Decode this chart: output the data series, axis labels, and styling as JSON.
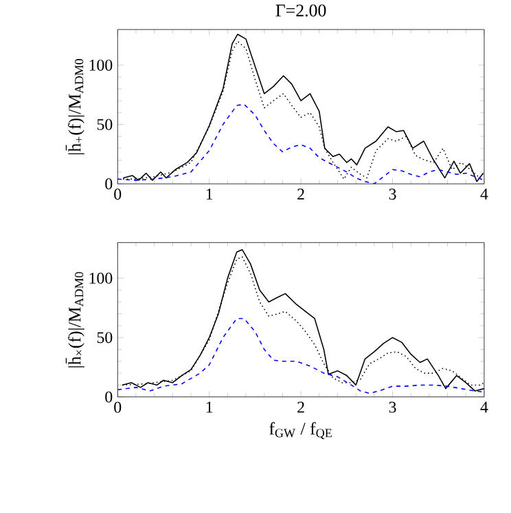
{
  "chart_data": [
    {
      "type": "line",
      "title": "Γ=2.00",
      "ylabel": "|h̄$_{+}$(f)|/M$_{ADM0}$",
      "xlim": [
        0,
        4
      ],
      "ylim": [
        0,
        130
      ],
      "xticks": [
        0,
        1,
        2,
        3,
        4
      ],
      "yticks": [
        0,
        50,
        100
      ],
      "series": [
        {
          "color": "#000000",
          "line_style": "solid",
          "x": [
            0.06,
            0.16,
            0.23,
            0.31,
            0.38,
            0.47,
            0.53,
            0.63,
            0.76,
            0.86,
            1.0,
            1.15,
            1.25,
            1.31,
            1.4,
            1.5,
            1.6,
            1.7,
            1.81,
            1.9,
            2.0,
            2.1,
            2.2,
            2.26,
            2.35,
            2.42,
            2.5,
            2.55,
            2.61,
            2.7,
            2.82,
            2.95,
            3.04,
            3.12,
            3.22,
            3.34,
            3.44,
            3.57,
            3.67,
            3.74,
            3.84,
            3.92,
            3.99
          ],
          "values": [
            5,
            7,
            3,
            9,
            3,
            10,
            5,
            12,
            18,
            26,
            49,
            80,
            118,
            126,
            122,
            99,
            76,
            82,
            91,
            84,
            70,
            76,
            61,
            30,
            23,
            25,
            18,
            21,
            16,
            30,
            36,
            48,
            44,
            45,
            30,
            36,
            21,
            5,
            19,
            9,
            17,
            2,
            9
          ]
        },
        {
          "color": "#000000",
          "line_style": "dotted",
          "x": [
            0.06,
            0.2,
            0.4,
            0.6,
            0.8,
            1.0,
            1.15,
            1.25,
            1.31,
            1.4,
            1.5,
            1.6,
            1.7,
            1.81,
            1.9,
            2.0,
            2.1,
            2.2,
            2.26,
            2.35,
            2.42,
            2.47,
            2.55,
            2.65,
            2.72,
            2.82,
            2.95,
            3.04,
            3.15,
            3.25,
            3.35,
            3.45,
            3.55,
            3.65,
            3.75,
            3.85,
            3.95,
            4.0
          ],
          "values": [
            4,
            4,
            6,
            10,
            18,
            48,
            78,
            112,
            120,
            114,
            88,
            64,
            70,
            76,
            66,
            56,
            60,
            48,
            30,
            18,
            10,
            4,
            14,
            8,
            5,
            28,
            38,
            36,
            40,
            24,
            20,
            18,
            30,
            12,
            18,
            12,
            5,
            10
          ]
        },
        {
          "color": "#0000ff",
          "line_style": "dashed",
          "x": [
            0,
            0.2,
            0.4,
            0.6,
            0.8,
            1.0,
            1.15,
            1.3,
            1.38,
            1.5,
            1.6,
            1.7,
            1.8,
            1.9,
            2.0,
            2.1,
            2.2,
            2.3,
            2.4,
            2.5,
            2.6,
            2.7,
            2.8,
            2.9,
            3.0,
            3.1,
            3.2,
            3.3,
            3.4,
            3.5,
            3.6,
            3.7,
            3.8,
            3.9,
            4.0
          ],
          "values": [
            4,
            3,
            4,
            6,
            10,
            28,
            50,
            66,
            67,
            58,
            45,
            34,
            27,
            31,
            33,
            30,
            22,
            18,
            14,
            10,
            5,
            2,
            0,
            6,
            12,
            11,
            8,
            6,
            10,
            12,
            10,
            8,
            9,
            6,
            3
          ]
        }
      ]
    },
    {
      "type": "line",
      "xlabel": "f$_{GW}$ / f$_{QE}$",
      "ylabel": "|h̄$_{×}$(f)|/M$_{ADM0}$",
      "xlim": [
        0,
        4
      ],
      "ylim": [
        0,
        130
      ],
      "xticks": [
        0,
        1,
        2,
        3,
        4
      ],
      "yticks": [
        0,
        50,
        100
      ],
      "series": [
        {
          "color": "#000000",
          "line_style": "solid",
          "x": [
            0.05,
            0.15,
            0.25,
            0.33,
            0.43,
            0.5,
            0.6,
            0.7,
            0.8,
            0.9,
            1.0,
            1.1,
            1.2,
            1.3,
            1.36,
            1.45,
            1.55,
            1.65,
            1.75,
            1.83,
            1.95,
            2.05,
            2.15,
            2.25,
            2.3,
            2.4,
            2.5,
            2.6,
            2.7,
            2.8,
            2.9,
            3.0,
            3.1,
            3.2,
            3.3,
            3.38,
            3.5,
            3.58,
            3.7,
            3.8,
            3.9,
            4.0
          ],
          "values": [
            10,
            12,
            8,
            12,
            10,
            14,
            12,
            18,
            23,
            35,
            50,
            70,
            100,
            122,
            124,
            112,
            90,
            80,
            84,
            87,
            78,
            72,
            66,
            40,
            19,
            22,
            18,
            10,
            32,
            38,
            45,
            50,
            46,
            36,
            29,
            32,
            18,
            7,
            18,
            12,
            5,
            7
          ]
        },
        {
          "color": "#000000",
          "line_style": "dotted",
          "x": [
            0.05,
            0.3,
            0.6,
            0.8,
            1.0,
            1.2,
            1.3,
            1.36,
            1.45,
            1.55,
            1.65,
            1.75,
            1.83,
            1.95,
            2.05,
            2.15,
            2.25,
            2.35,
            2.45,
            2.55,
            2.65,
            2.75,
            2.85,
            2.95,
            3.05,
            3.15,
            3.25,
            3.35,
            3.45,
            3.55,
            3.65,
            3.75,
            3.85,
            3.95,
            4.0
          ],
          "values": [
            10,
            11,
            14,
            22,
            48,
            96,
            116,
            118,
            104,
            80,
            68,
            70,
            72,
            64,
            55,
            44,
            28,
            16,
            12,
            12,
            15,
            28,
            32,
            37,
            38,
            34,
            24,
            20,
            20,
            24,
            22,
            16,
            10,
            10,
            12
          ]
        },
        {
          "color": "#0000ff",
          "line_style": "dashed",
          "x": [
            0,
            0.2,
            0.35,
            0.5,
            0.7,
            0.9,
            1.0,
            1.15,
            1.3,
            1.38,
            1.5,
            1.6,
            1.7,
            1.8,
            1.95,
            2.1,
            2.25,
            2.4,
            2.55,
            2.65,
            2.75,
            2.85,
            3.0,
            3.15,
            3.3,
            3.45,
            3.6,
            3.75,
            3.9,
            4.0
          ],
          "values": [
            6,
            8,
            5,
            9,
            11,
            20,
            27,
            50,
            66,
            66,
            55,
            40,
            31,
            30,
            30,
            26,
            20,
            17,
            10,
            5,
            3,
            5,
            9,
            9,
            10,
            10,
            9,
            7,
            5,
            4
          ]
        }
      ]
    }
  ]
}
